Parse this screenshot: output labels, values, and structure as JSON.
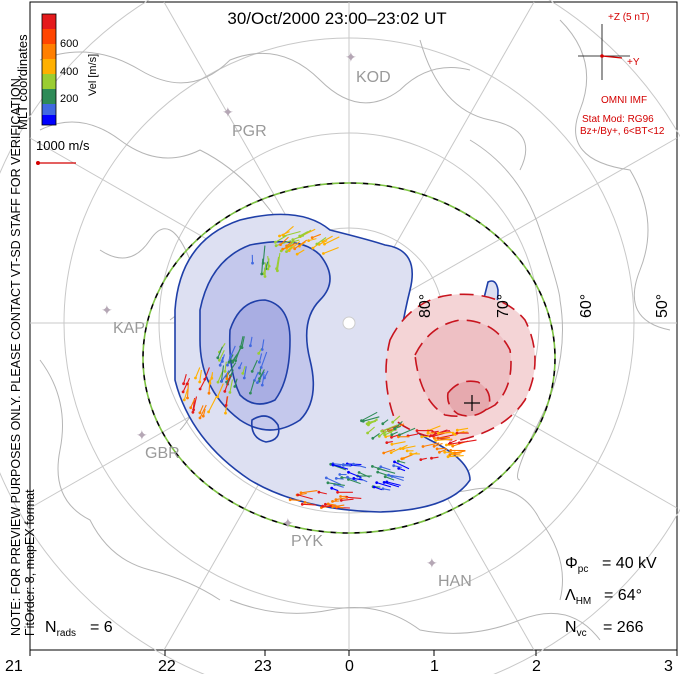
{
  "title": "30/Oct/2000 23:00–23:02 UT",
  "colorbar": {
    "label": "Vel [m/s]",
    "ticks": [
      "600",
      "400",
      "200"
    ],
    "colors": [
      "#e41a1c",
      "#ff7f00",
      "#ffb000",
      "#9acd32",
      "#2e8b57",
      "#4169e1",
      "#0000ff"
    ]
  },
  "coordinates_label": "MLT coordinates",
  "reference_vector": "1000 m/s",
  "imf": {
    "z_label": "+Z (5 nT)",
    "y_label": "+Y",
    "source": "OMNI IMF",
    "model": "Stat Mod: RG96",
    "conditions": "Bz+/By+, 6<BT<12"
  },
  "latitude_labels": [
    "80°",
    "70°",
    "60°",
    "50°"
  ],
  "radar_labels": [
    "KOD",
    "PGR",
    "KAP",
    "GBR",
    "PYK",
    "HAN"
  ],
  "mlt_labels": [
    "21",
    "22",
    "23",
    "0",
    "1",
    "2",
    "3"
  ],
  "notes": {
    "line1": "NOTE: FOR PREVIEW PURPOSES ONLY. PLEASE CONTACT VT-SD STAFF FOR VERIFICATION.",
    "line2": "FitOrder: 8, mapEX format"
  },
  "stats": {
    "phi_value": "= 40 kV",
    "lambda_value": "= 64°",
    "nvc_value": "= 266",
    "nrads_value": "= 6"
  },
  "colors": {
    "negative_cell": "#1f3fa8",
    "positive_cell": "#c8141e",
    "boundary_dash": "#7dc242",
    "imf_red": "#d40000"
  }
}
